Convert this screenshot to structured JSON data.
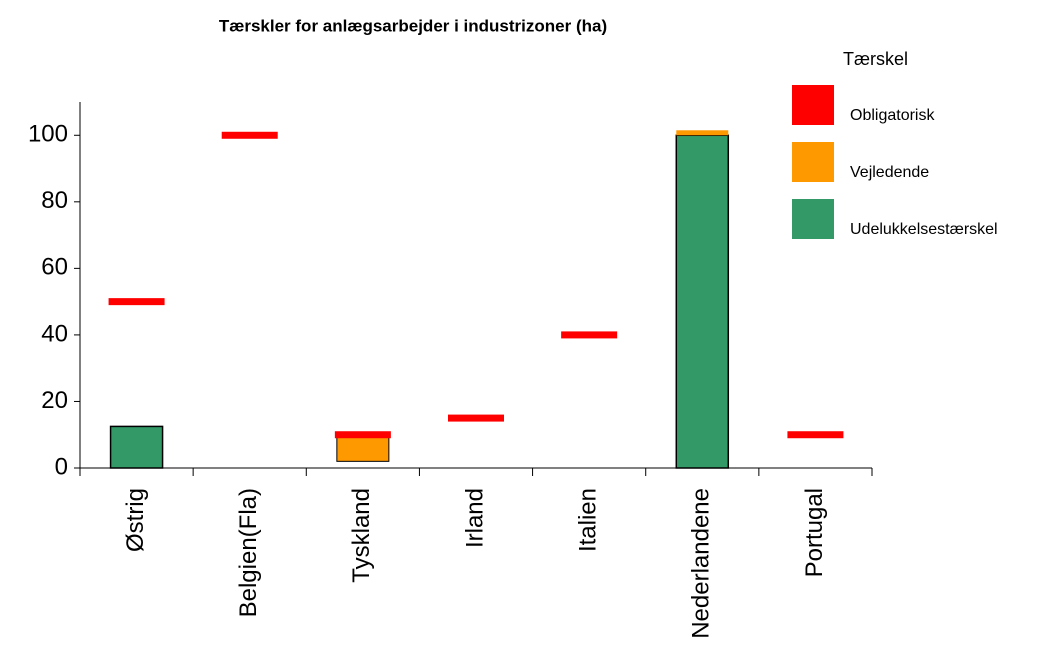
{
  "chart_data": {
    "type": "bar",
    "title": "Tærskler for anlægsarbejder i industrizoner (ha)",
    "legend_title": "Tærskel",
    "categories": [
      "Østrig",
      "Belgien(Fla)",
      "Tyskland",
      "Irland",
      "Italien",
      "Nederlandene",
      "Portugal"
    ],
    "series": [
      {
        "name": "Obligatorisk",
        "color": "#ff0000",
        "kind": "marker",
        "values": [
          50,
          100,
          10,
          15,
          40,
          null,
          10
        ]
      },
      {
        "name": "Vejledende",
        "color": "#ff9900",
        "kind": "range",
        "low": [
          null,
          null,
          2,
          null,
          null,
          100,
          null
        ],
        "values": [
          null,
          null,
          10,
          null,
          null,
          101.5,
          null
        ]
      },
      {
        "name": "Udelukkelsestærskel",
        "color": "#339966",
        "kind": "bar",
        "values": [
          12.5,
          null,
          null,
          null,
          null,
          100,
          null
        ]
      }
    ],
    "ylim": [
      0,
      110
    ],
    "yticks": [
      0,
      20,
      40,
      60,
      80,
      100
    ],
    "legend": "right"
  }
}
